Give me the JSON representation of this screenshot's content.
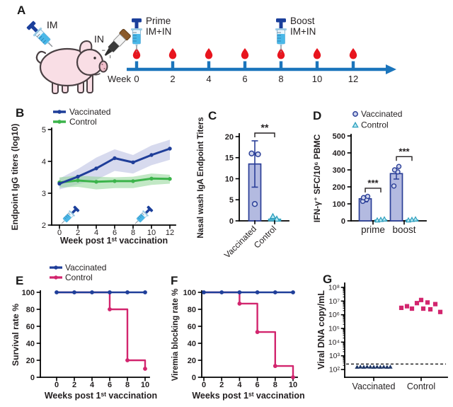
{
  "colors": {
    "vaccinated_blue": "#1f3e99",
    "control_green": "#3cb44b",
    "control_magenta": "#d2256e",
    "bar_fill": "#b3bae0",
    "bar_stroke": "#2b3f98",
    "point_fill": "#cfd5ec",
    "cyan_fill": "#7ad4e6",
    "cyan_stroke": "#2e9fbe",
    "cyan_point_fill": "#b8e9f3",
    "navy": "#1d3566",
    "timeline_blue": "#1b75bc",
    "drop_red": "#e8151e",
    "axis": "#000000",
    "text": "#231f20"
  },
  "panelA": {
    "label": "A",
    "im_label": "IM",
    "in_label": "IN",
    "prime_title": "Prime",
    "prime_route": "IM+IN",
    "boost_title": "Boost",
    "boost_route": "IM+IN",
    "week_prefix": "Week",
    "weeks": [
      0,
      2,
      4,
      6,
      8,
      10,
      12
    ],
    "prime_week": 0,
    "boost_week": 8
  },
  "chart_data": [
    {
      "id": "B",
      "panel_label": "B",
      "type": "line",
      "xlabel": "Week post 1ˢᵗ vaccination",
      "ylabel": "Endpoint IgG titers (log10)",
      "x": [
        0,
        2,
        4,
        6,
        8,
        10,
        12
      ],
      "xlim": [
        0,
        12
      ],
      "ylim": [
        2,
        5
      ],
      "yticks": [
        2,
        3,
        4,
        5
      ],
      "legend_position": "top-left",
      "series": [
        {
          "name": "Vaccinated",
          "color": "#1f3e99",
          "band_color": "#b7bce0",
          "values": [
            3.3,
            3.52,
            3.78,
            4.1,
            3.97,
            4.2,
            4.4
          ],
          "band_lo": [
            3.12,
            3.28,
            3.42,
            3.7,
            3.62,
            3.88,
            4.05
          ],
          "band_hi": [
            3.46,
            3.76,
            4.12,
            4.38,
            4.2,
            4.5,
            4.68
          ]
        },
        {
          "name": "Control",
          "color": "#3cb44b",
          "band_color": "#90d596",
          "values": [
            3.34,
            3.4,
            3.36,
            3.38,
            3.38,
            3.46,
            3.45
          ],
          "band_lo": [
            3.18,
            3.2,
            3.12,
            3.16,
            3.16,
            3.26,
            3.3
          ],
          "band_hi": [
            3.5,
            3.55,
            3.52,
            3.5,
            3.52,
            3.62,
            3.58
          ]
        }
      ],
      "vaccination_weeks": [
        0,
        8
      ]
    },
    {
      "id": "C",
      "panel_label": "C",
      "type": "bar",
      "ylabel": "Nasal wash IgA Endpoint Titers",
      "categories": [
        "Vaccinated",
        "Control"
      ],
      "values": [
        13.5,
        0.4
      ],
      "error_hi": [
        5.5,
        0.5
      ],
      "error_lo": [
        5.5,
        0
      ],
      "points": [
        [
          16,
          15.8,
          4
        ],
        [
          1.0,
          0.4
        ]
      ],
      "ylim": [
        0,
        20
      ],
      "yticks": [
        0,
        5,
        10,
        15,
        20
      ],
      "significance": "**"
    },
    {
      "id": "D",
      "panel_label": "D",
      "type": "grouped_bar",
      "ylabel": "IFN-γ⁺ SFC/10⁶ PBMC",
      "categories": [
        "prime",
        "boost"
      ],
      "legend": [
        "Vaccinated",
        "Control"
      ],
      "series": [
        {
          "name": "Vaccinated",
          "marker": "circle",
          "values": [
            130,
            278
          ],
          "error_hi": [
            18,
            32
          ],
          "points": [
            [
              115,
              126,
              136,
              144
            ],
            [
              205,
              288,
              300,
              320
            ]
          ]
        },
        {
          "name": "Control",
          "marker": "triangle",
          "values": [
            5,
            5
          ],
          "error_hi": [
            0,
            0
          ],
          "points": [
            [
              3,
              6,
              9
            ],
            [
              3,
              6,
              9
            ]
          ]
        }
      ],
      "ylim": [
        0,
        500
      ],
      "yticks": [
        0,
        100,
        200,
        300,
        400,
        500
      ],
      "significance": [
        "***",
        "***"
      ],
      "sig_y_values": [
        192,
        378
      ]
    },
    {
      "id": "E",
      "panel_label": "E",
      "type": "step",
      "xlabel": "Weeks post 1ˢᵗ vaccination",
      "ylabel": "Survival rate %",
      "xlim": [
        0,
        10
      ],
      "xticks": [
        0,
        2,
        4,
        6,
        8,
        10
      ],
      "ylim": [
        0,
        100
      ],
      "yticks": [
        0,
        20,
        40,
        60,
        80,
        100
      ],
      "legend": [
        "Vaccinated",
        "Control"
      ],
      "series": [
        {
          "name": "Vaccinated",
          "color": "#1f3e99",
          "flat_value": 100,
          "marker_x": [
            0,
            2,
            4,
            6,
            8,
            10
          ]
        },
        {
          "name": "Control",
          "color": "#d2256e",
          "steps": [
            [
              0,
              100
            ],
            [
              6,
              80
            ],
            [
              8,
              20
            ],
            [
              10,
              10
            ]
          ]
        }
      ]
    },
    {
      "id": "F",
      "panel_label": "F",
      "type": "step",
      "xlabel": "Weeks post 1ˢᵗ vaccination",
      "ylabel": "Viremia blocking rate %",
      "xlim": [
        0,
        10
      ],
      "xticks": [
        0,
        2,
        4,
        6,
        8,
        10
      ],
      "ylim": [
        0,
        100
      ],
      "yticks": [
        0,
        20,
        40,
        60,
        80,
        100
      ],
      "legend": [],
      "series": [
        {
          "name": "Vaccinated",
          "color": "#1f3e99",
          "flat_value": 100,
          "marker_x": [
            0,
            2,
            4,
            6,
            8,
            10
          ]
        },
        {
          "name": "Control",
          "color": "#d2256e",
          "steps": [
            [
              0,
              100
            ],
            [
              4,
              86.7
            ],
            [
              6,
              53.3
            ],
            [
              8,
              13.3
            ],
            [
              10,
              0
            ]
          ]
        }
      ]
    },
    {
      "id": "G",
      "panel_label": "G",
      "type": "scatter_log",
      "ylabel": "Viral DNA copy/mL",
      "ytick_exponents": [
        2,
        3,
        4,
        5,
        6,
        7,
        8
      ],
      "ytick_labels": [
        "10²",
        "10³",
        "10⁴",
        "10⁵",
        "10⁶",
        "10⁷",
        "10⁸"
      ],
      "detection_limit": 250,
      "groups": [
        {
          "name": "Vaccinated",
          "marker": "triangle",
          "color": "#1d3566",
          "values": [
            150,
            155,
            150,
            158,
            152,
            150,
            156,
            150,
            154,
            150,
            152
          ]
        },
        {
          "name": "Control",
          "marker": "square",
          "color": "#d2256e",
          "values": [
            3200000,
            4200000,
            2800000,
            7100000,
            12000000,
            2800000,
            7900000,
            2500000,
            6000000,
            1600000
          ]
        }
      ]
    }
  ]
}
